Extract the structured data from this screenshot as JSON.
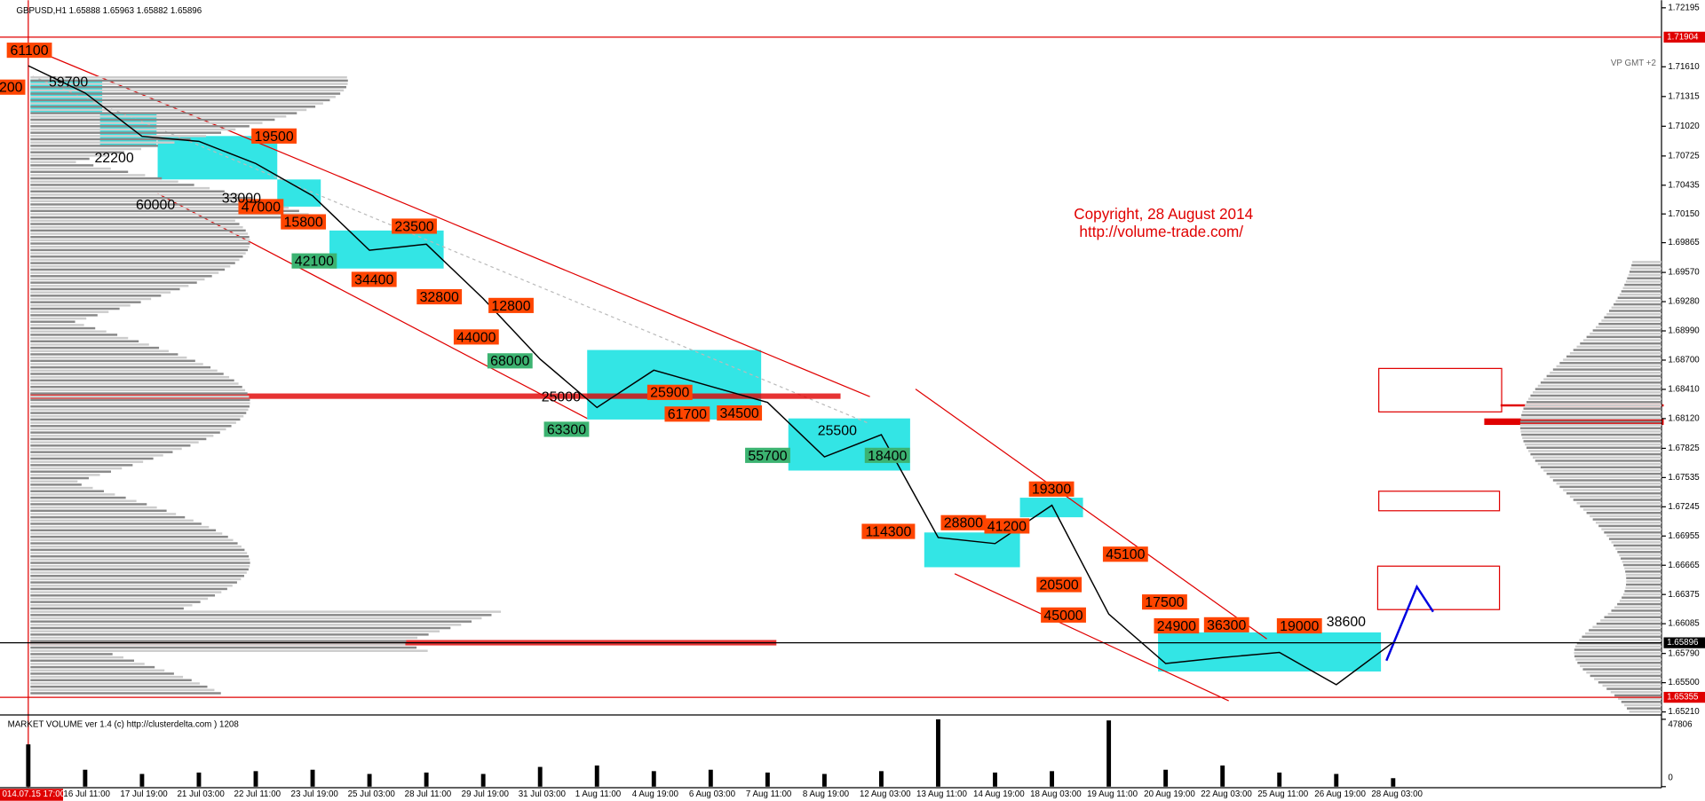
{
  "chart_data": {
    "type": "line",
    "title": "GBPUSD,H1  1.65888 1.65963 1.65882 1.65896",
    "watermark": "VP GMT +2",
    "copyright": [
      "Copyright, 28 August 2014",
      "http://volume-trade.com/"
    ],
    "categories": [
      "014.07.15 17:00",
      "16 Jul 11:00",
      "17 Jul 19:00",
      "21 Jul 03:00",
      "22 Jul 11:00",
      "23 Jul 19:00",
      "25 Jul 03:00",
      "28 Jul 11:00",
      "29 Jul 19:00",
      "31 Jul 03:00",
      "1 Aug 11:00",
      "4 Aug 19:00",
      "6 Aug 03:00",
      "7 Aug 11:00",
      "8 Aug 19:00",
      "12 Aug 03:00",
      "13 Aug 11:00",
      "14 Aug 19:00",
      "18 Aug 03:00",
      "19 Aug 11:00",
      "20 Aug 19:00",
      "22 Aug 03:00",
      "25 Aug 11:00",
      "26 Aug 19:00",
      "28 Aug 03:00"
    ],
    "series": [
      {
        "name": "GBPUSD",
        "color": "#000000",
        "values": [
          1.7162,
          1.7135,
          1.7092,
          1.7087,
          1.7065,
          1.7033,
          1.6979,
          1.6985,
          1.6931,
          1.6871,
          1.6823,
          1.686,
          1.6844,
          1.6828,
          1.6774,
          1.6796,
          1.6694,
          1.6688,
          1.6726,
          1.6618,
          1.6569,
          1.6575,
          1.658,
          1.6548,
          1.659
        ]
      }
    ],
    "ylim": [
      1.6518,
      1.7227
    ],
    "yticks": [
      {
        "value": 1.72195,
        "label": "1.72195"
      },
      {
        "value": 1.7161,
        "label": "1.71610"
      },
      {
        "value": 1.71315,
        "label": "1.71315"
      },
      {
        "value": 1.7102,
        "label": "1.71020"
      },
      {
        "value": 1.70725,
        "label": "1.70725"
      },
      {
        "value": 1.70435,
        "label": "1.70435"
      },
      {
        "value": 1.7015,
        "label": "1.70150"
      },
      {
        "value": 1.69865,
        "label": "1.69865"
      },
      {
        "value": 1.6957,
        "label": "1.69570"
      },
      {
        "value": 1.6928,
        "label": "1.69280"
      },
      {
        "value": 1.6899,
        "label": "1.68990"
      },
      {
        "value": 1.687,
        "label": "1.68700"
      },
      {
        "value": 1.6841,
        "label": "1.68410"
      },
      {
        "value": 1.6812,
        "label": "1.68120"
      },
      {
        "value": 1.67825,
        "label": "1.67825"
      },
      {
        "value": 1.67535,
        "label": "1.67535"
      },
      {
        "value": 1.67245,
        "label": "1.67245"
      },
      {
        "value": 1.66955,
        "label": "1.66955"
      },
      {
        "value": 1.66665,
        "label": "1.66665"
      },
      {
        "value": 1.66375,
        "label": "1.66375"
      },
      {
        "value": 1.66085,
        "label": "1.66085"
      },
      {
        "value": 1.6579,
        "label": "1.65790"
      },
      {
        "value": 1.655,
        "label": "1.65500"
      },
      {
        "value": 1.6521,
        "label": "1.65210"
      }
    ],
    "levels": [
      {
        "value": 1.71904,
        "label": "1.71904",
        "color": "#e00000"
      },
      {
        "value": 1.65896,
        "label": "1.65896",
        "color": "#000000"
      },
      {
        "value": 1.65355,
        "label": "1.65355",
        "color": "#e00000"
      }
    ],
    "volume": {
      "title": "MARKET VOLUME ver 1.4 (c) http://clusterdelta.com ) 1208",
      "values": [
        30000,
        12000,
        9000,
        10000,
        11000,
        12000,
        9000,
        10000,
        9000,
        14000,
        15000,
        11000,
        12000,
        10000,
        9000,
        11000,
        47806,
        10000,
        11000,
        47000,
        12000,
        15000,
        10000,
        9000,
        6000
      ],
      "ylim": [
        0,
        47806
      ],
      "yticks": [
        0,
        47806
      ]
    },
    "annotations": {
      "orange": [
        "61100",
        "200",
        "19500",
        "47000",
        "15800",
        "23500",
        "34400",
        "32800",
        "12800",
        "44000",
        "25900",
        "61700",
        "34500",
        "114300",
        "28800",
        "41200",
        "19300",
        "20500",
        "45000",
        "45100",
        "17500",
        "24900",
        "36300",
        "19000"
      ],
      "green": [
        "42100",
        "68000",
        "63300",
        "55700",
        "18400"
      ],
      "plain": [
        "59700",
        "22200",
        "60000",
        "33000",
        "25000",
        "25500",
        "38600"
      ]
    }
  }
}
